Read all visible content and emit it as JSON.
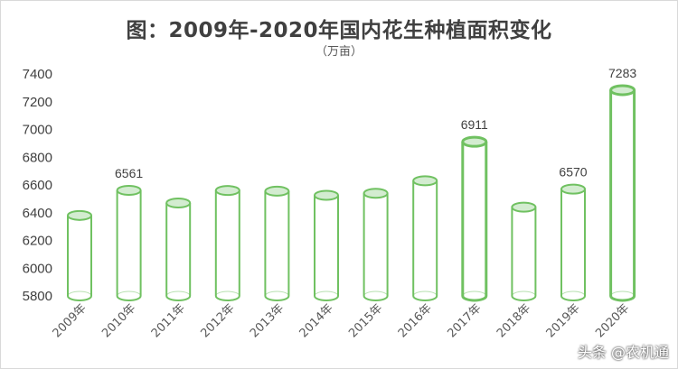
{
  "title": "图：2009年-2020年国内花生种植面积变化",
  "unit": "（万亩）",
  "watermark": "头条 @农机通",
  "colors": {
    "bar_stroke": "#70c161",
    "bar_top_fill": "#d3ecd0",
    "text": "#404040"
  },
  "chart_data": {
    "type": "bar",
    "title": "图：2009年-2020年国内花生种植面积变化",
    "ylabel": "（万亩）",
    "xlabel": "",
    "categories": [
      "2009年",
      "2010年",
      "2011年",
      "2012年",
      "2013年",
      "2014年",
      "2015年",
      "2016年",
      "2017年",
      "2018年",
      "2019年",
      "2020年"
    ],
    "values": [
      6380,
      6561,
      6470,
      6560,
      6555,
      6525,
      6540,
      6630,
      6911,
      6440,
      6570,
      7283
    ],
    "data_labels": {
      "2010年": "6561",
      "2017年": "6911",
      "2019年": "6570",
      "2020年": "7283"
    },
    "ylim": [
      5800,
      7400
    ],
    "yticks": [
      "5800",
      "6000",
      "6200",
      "6400",
      "6600",
      "6800",
      "7000",
      "7200",
      "7400"
    ],
    "grid": false,
    "legend": "none"
  }
}
